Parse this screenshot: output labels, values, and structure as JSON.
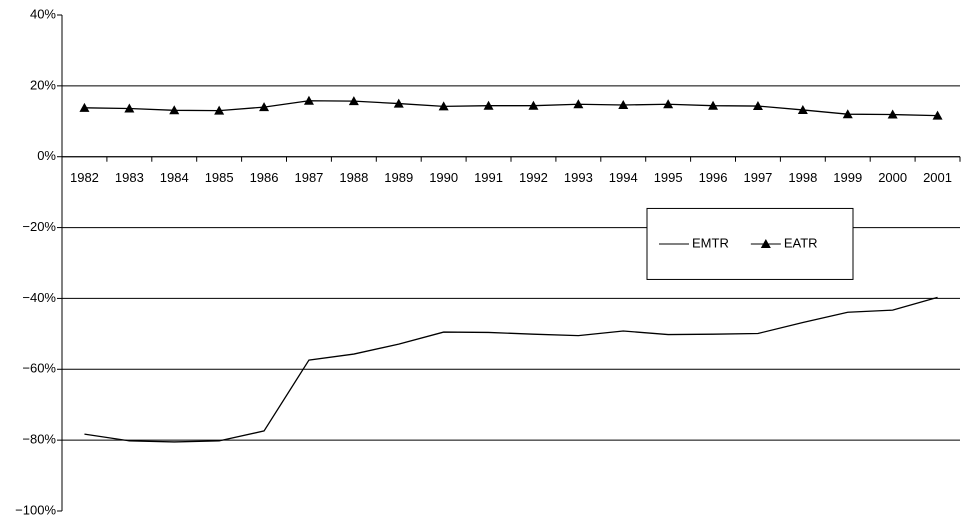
{
  "chart_data": {
    "type": "line",
    "categories": [
      "1982",
      "1983",
      "1984",
      "1985",
      "1986",
      "1987",
      "1988",
      "1989",
      "1990",
      "1991",
      "1992",
      "1993",
      "1994",
      "1995",
      "1996",
      "1997",
      "1998",
      "1999",
      "2000",
      "2001"
    ],
    "series": [
      {
        "name": "EMTR",
        "color": "#000000",
        "marker": null,
        "values": [
          -78.3,
          -80.2,
          -80.5,
          -80.2,
          -77.4,
          -57.4,
          -55.7,
          -52.9,
          -49.5,
          -49.6,
          -50.1,
          -50.5,
          -49.2,
          -50.2,
          -50.1,
          -49.9,
          -46.8,
          -43.9,
          -43.3,
          -39.7
        ]
      },
      {
        "name": "EATR",
        "color": "#000000",
        "marker": "triangle",
        "values": [
          13.8,
          13.6,
          13.1,
          13.0,
          14.0,
          15.8,
          15.7,
          15.0,
          14.2,
          14.4,
          14.4,
          14.8,
          14.6,
          14.8,
          14.4,
          14.3,
          13.2,
          12.0,
          11.9,
          11.6
        ]
      }
    ],
    "ylim": [
      -100,
      40
    ],
    "yticks": [
      {
        "value": 40,
        "label": "40%"
      },
      {
        "value": 20,
        "label": "20%"
      },
      {
        "value": 0,
        "label": "0%"
      },
      {
        "value": -20,
        "label": "−20%"
      },
      {
        "value": -40,
        "label": "−40%"
      },
      {
        "value": -60,
        "label": "−60%"
      },
      {
        "value": -80,
        "label": "−80%"
      },
      {
        "value": -100,
        "label": "−100%"
      }
    ],
    "grid": true,
    "legend_loc": "center right"
  }
}
